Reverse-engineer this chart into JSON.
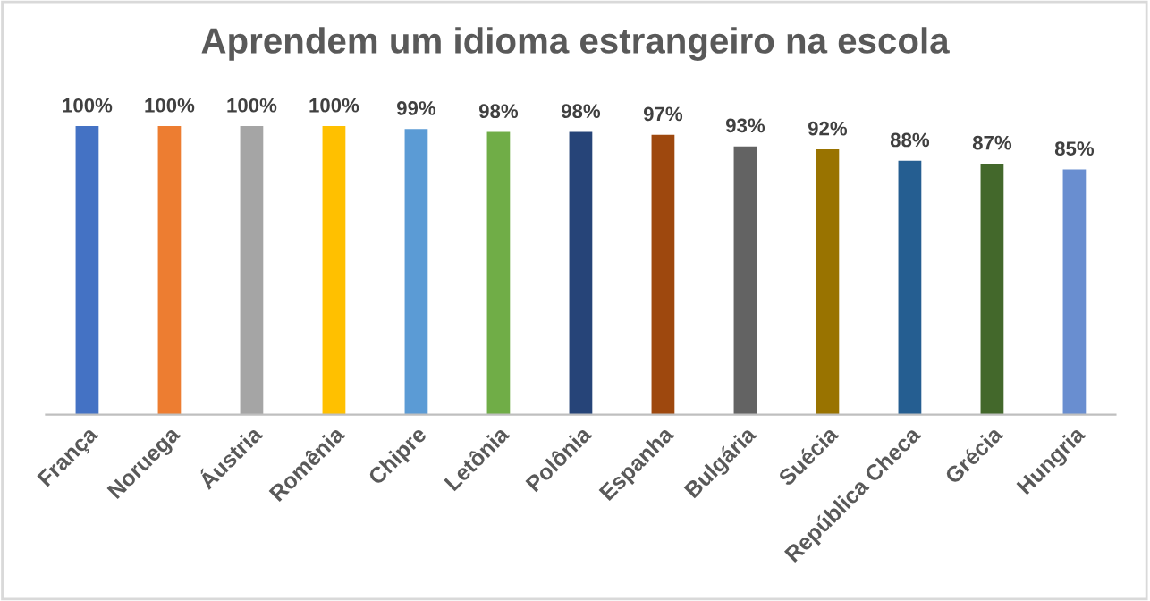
{
  "chart_data": {
    "type": "bar",
    "title": "Aprendem um idioma estrangeiro na escola",
    "categories": [
      "França",
      "Noruega",
      "Áustria",
      "Romênia",
      "Chipre",
      "Letônia",
      "Polônia",
      "Espanha",
      "Bulgária",
      "Suécia",
      "República Checa",
      "Grécia",
      "Hungria"
    ],
    "values": [
      100,
      100,
      100,
      100,
      99,
      98,
      98,
      97,
      93,
      92,
      88,
      87,
      85
    ],
    "colors": [
      "#4472c4",
      "#ed7d31",
      "#a5a5a5",
      "#ffc000",
      "#5b9bd5",
      "#70ad47",
      "#264478",
      "#9e480e",
      "#636363",
      "#997300",
      "#255e91",
      "#43682b",
      "#698ed0"
    ],
    "value_labels": [
      "100%",
      "100%",
      "100%",
      "100%",
      "99%",
      "98%",
      "98%",
      "97%",
      "93%",
      "92%",
      "88%",
      "87%",
      "85%"
    ],
    "grid": false,
    "legend": false,
    "tick_labels": "x"
  }
}
